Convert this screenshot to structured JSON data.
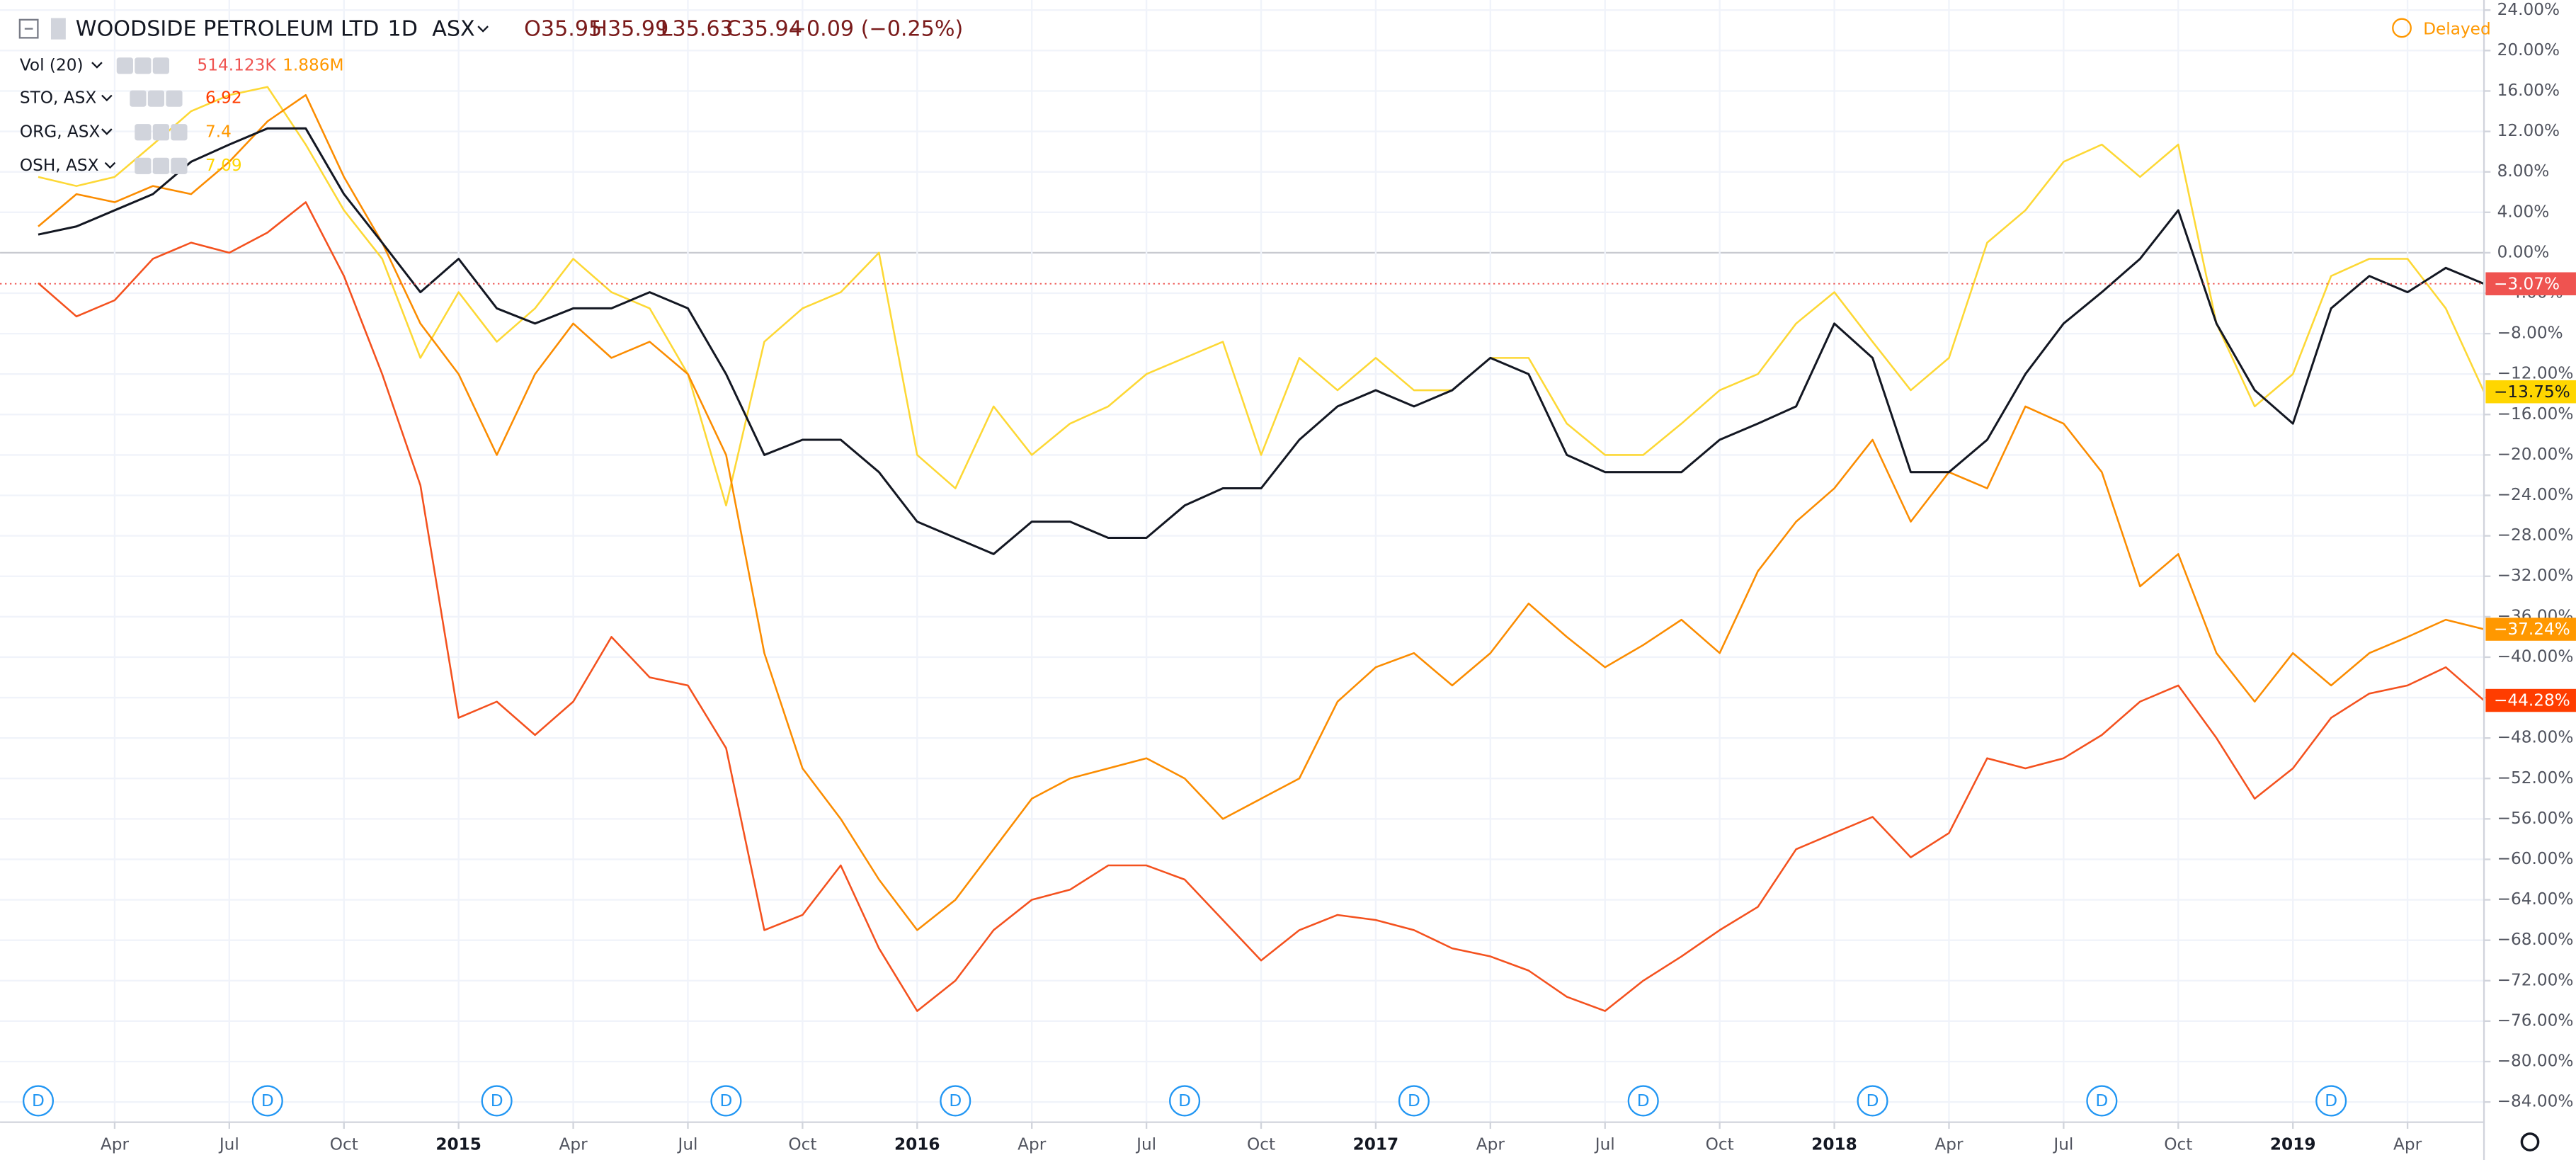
{
  "header": {
    "interval": "1D",
    "exchange": "ASX",
    "ohlc": [
      "O35.95",
      "H35.99",
      "L35.63",
      "C35.94",
      "−0.09 (−0.25%)"
    ],
    "status": "Delayed",
    "volume": {
      "name": "Vol (20)",
      "values": [
        "514.123K",
        "1.886M"
      ],
      "colors": [
        "#ef5350",
        "#ff9800"
      ]
    }
  },
  "chart_data": {
    "type": "line",
    "x": [
      "2014-02",
      "2014-03",
      "2014-04",
      "2014-05",
      "2014-06",
      "2014-07",
      "2014-08",
      "2014-09",
      "2014-10",
      "2014-11",
      "2014-12",
      "2015-01",
      "2015-02",
      "2015-03",
      "2015-04",
      "2015-05",
      "2015-06",
      "2015-07",
      "2015-08",
      "2015-09",
      "2015-10",
      "2015-11",
      "2015-12",
      "2016-01",
      "2016-02",
      "2016-03",
      "2016-04",
      "2016-05",
      "2016-06",
      "2016-07",
      "2016-08",
      "2016-09",
      "2016-10",
      "2016-11",
      "2016-12",
      "2017-01",
      "2017-02",
      "2017-03",
      "2017-04",
      "2017-05",
      "2017-06",
      "2017-07",
      "2017-08",
      "2017-09",
      "2017-10",
      "2017-11",
      "2017-12",
      "2018-01",
      "2018-02",
      "2018-03",
      "2018-04",
      "2018-05",
      "2018-06",
      "2018-07",
      "2018-08",
      "2018-09",
      "2018-10",
      "2018-11",
      "2018-12",
      "2019-01",
      "2019-02",
      "2019-03",
      "2019-04",
      "2019-05",
      "2019-06"
    ],
    "series": [
      {
        "name": "WOODSIDE PETROLEUM LTD",
        "color": "#131722",
        "label_color": "#ef5350",
        "last_label": "−3.07%",
        "values": [
          1.8,
          2.6,
          4.2,
          5.8,
          9,
          10.7,
          12.3,
          12.3,
          5.8,
          1,
          -3.9,
          -0.6,
          -5.5,
          -7,
          -5.5,
          -5.5,
          -3.9,
          -5.5,
          -12,
          -20,
          -18.5,
          -18.5,
          -21.7,
          -26.6,
          -28.2,
          -29.8,
          -26.6,
          -26.6,
          -28.2,
          -28.2,
          -25,
          -23.3,
          -23.3,
          -18.5,
          -15.2,
          -13.6,
          -15.2,
          -13.6,
          -10.4,
          -12,
          -20,
          -21.7,
          -21.7,
          -21.7,
          -18.5,
          -16.9,
          -15.2,
          -7,
          -10.4,
          -21.7,
          -21.7,
          -18.5,
          -12,
          -7,
          -3.9,
          -0.6,
          4.2,
          -7,
          -13.6,
          -16.9,
          -5.5,
          -2.3,
          -3.9,
          -1.5,
          -3.07
        ]
      },
      {
        "name": "STO, ASX",
        "color": "#f4511e",
        "label_color": "#ff3d00",
        "legend_value": "6.92",
        "last_label": "−44.28%",
        "values": [
          -3,
          -6.3,
          -4.7,
          -0.6,
          1,
          0,
          2,
          5,
          -2.3,
          -12,
          -23,
          -46,
          -44.4,
          -47.7,
          -44.4,
          -38,
          -42,
          -42.8,
          -49,
          -67,
          -65.5,
          -60.6,
          -68.8,
          -75,
          -72,
          -67,
          -64,
          -63,
          -60.6,
          -60.6,
          -62,
          -66,
          -70,
          -67,
          -65.5,
          -66,
          -67,
          -68.8,
          -69.6,
          -71,
          -73.6,
          -75,
          -72,
          -69.6,
          -67,
          -64.7,
          -59,
          -57.4,
          -55.8,
          -59.8,
          -57.4,
          -50,
          -51,
          -50,
          -47.7,
          -44.4,
          -42.8,
          -48,
          -54,
          -51,
          -46,
          -43.6,
          -42.8,
          -41,
          -44.28
        ]
      },
      {
        "name": "ORG, ASX",
        "color": "#fb8c00",
        "label_color": "#ff9800",
        "legend_value": "7.4",
        "last_label": "−37.24%",
        "values": [
          2.6,
          5.8,
          5,
          6.6,
          5.8,
          9,
          13,
          15.6,
          7.5,
          1,
          -7,
          -12,
          -20,
          -12,
          -7,
          -10.4,
          -8.8,
          -12,
          -20,
          -39.6,
          -51,
          -56,
          -62,
          -67,
          -64,
          -59,
          -54,
          -52,
          -51,
          -50,
          -52,
          -56,
          -54,
          -52,
          -44.4,
          -41,
          -39.6,
          -42.8,
          -39.6,
          -34.7,
          -38,
          -41,
          -38.8,
          -36.3,
          -39.6,
          -31.5,
          -26.6,
          -23.3,
          -18.5,
          -26.6,
          -21.7,
          -23.3,
          -15.2,
          -16.9,
          -21.7,
          -33,
          -29.8,
          -39.6,
          -44.4,
          -39.6,
          -42.8,
          -39.6,
          -38,
          -36.3,
          -37.24
        ]
      },
      {
        "name": "OSH, ASX",
        "color": "#fdd835",
        "label_color": "#ffd600",
        "legend_value": "7.09",
        "last_label": "−13.75%",
        "values": [
          7.5,
          6.6,
          7.5,
          10.7,
          14,
          15.6,
          16.4,
          10.7,
          4.2,
          -0.6,
          -10.4,
          -3.9,
          -8.8,
          -5.5,
          -0.6,
          -3.9,
          -5.5,
          -12,
          -25,
          -8.8,
          -5.5,
          -3.9,
          0,
          -20,
          -23.3,
          -15.2,
          -20,
          -16.9,
          -15.2,
          -12,
          -10.4,
          -8.8,
          -20,
          -10.4,
          -13.6,
          -10.4,
          -13.6,
          -13.6,
          -10.4,
          -10.4,
          -16.9,
          -20,
          -20,
          -16.9,
          -13.6,
          -12,
          -7,
          -3.9,
          -8.8,
          -13.6,
          -10.4,
          1,
          4.2,
          9,
          10.7,
          7.5,
          10.7,
          -7,
          -15.2,
          -12,
          -2.3,
          -0.6,
          -0.6,
          -5.5,
          -13.75
        ]
      }
    ],
    "xlim": [
      "2014-01",
      "2019-06"
    ],
    "xticks": [
      {
        "value": "2014-04",
        "label": "Apr"
      },
      {
        "value": "2014-07",
        "label": "Jul"
      },
      {
        "value": "2014-10",
        "label": "Oct"
      },
      {
        "value": "2015-01",
        "label": "2015"
      },
      {
        "value": "2015-04",
        "label": "Apr"
      },
      {
        "value": "2015-07",
        "label": "Jul"
      },
      {
        "value": "2015-10",
        "label": "Oct"
      },
      {
        "value": "2016-01",
        "label": "2016"
      },
      {
        "value": "2016-04",
        "label": "Apr"
      },
      {
        "value": "2016-07",
        "label": "Jul"
      },
      {
        "value": "2016-10",
        "label": "Oct"
      },
      {
        "value": "2017-01",
        "label": "2017"
      },
      {
        "value": "2017-04",
        "label": "Apr"
      },
      {
        "value": "2017-07",
        "label": "Jul"
      },
      {
        "value": "2017-10",
        "label": "Oct"
      },
      {
        "value": "2018-01",
        "label": "2018"
      },
      {
        "value": "2018-04",
        "label": "Apr"
      },
      {
        "value": "2018-07",
        "label": "Jul"
      },
      {
        "value": "2018-10",
        "label": "Oct"
      },
      {
        "value": "2019-01",
        "label": "2019"
      },
      {
        "value": "2019-04",
        "label": "Apr"
      }
    ],
    "ylim": [
      -86,
      25
    ],
    "yticks": [
      {
        "value": 24,
        "label": "24.00%"
      },
      {
        "value": 20,
        "label": "20.00%"
      },
      {
        "value": 16,
        "label": "16.00%"
      },
      {
        "value": 12,
        "label": "12.00%"
      },
      {
        "value": 8,
        "label": "8.00%"
      },
      {
        "value": 4,
        "label": "4.00%"
      },
      {
        "value": 0,
        "label": "0.00%"
      },
      {
        "value": -4,
        "label": "−4.00%"
      },
      {
        "value": -8,
        "label": "−8.00%"
      },
      {
        "value": -12,
        "label": "−12.00%"
      },
      {
        "value": -16,
        "label": "−16.00%"
      },
      {
        "value": -20,
        "label": "−20.00%"
      },
      {
        "value": -24,
        "label": "−24.00%"
      },
      {
        "value": -28,
        "label": "−28.00%"
      },
      {
        "value": -32,
        "label": "−32.00%"
      },
      {
        "value": -36,
        "label": "−36.00%"
      },
      {
        "value": -40,
        "label": "−40.00%"
      },
      {
        "value": -44,
        "label": "−44.00%"
      },
      {
        "value": -48,
        "label": "−48.00%"
      },
      {
        "value": -52,
        "label": "−52.00%"
      },
      {
        "value": -56,
        "label": "−56.00%"
      },
      {
        "value": -60,
        "label": "−60.00%"
      },
      {
        "value": -64,
        "label": "−64.00%"
      },
      {
        "value": -68,
        "label": "−68.00%"
      },
      {
        "value": -72,
        "label": "−72.00%"
      },
      {
        "value": -76,
        "label": "−76.00%"
      },
      {
        "value": -80,
        "label": "−80.00%"
      },
      {
        "value": -84,
        "label": "−84.00%"
      }
    ],
    "grid": true,
    "dividends": {
      "label": "D",
      "x": [
        "2014-02",
        "2014-08",
        "2015-02",
        "2015-08",
        "2016-02",
        "2016-08",
        "2017-02",
        "2017-08",
        "2018-02",
        "2018-08",
        "2019-02"
      ]
    }
  }
}
